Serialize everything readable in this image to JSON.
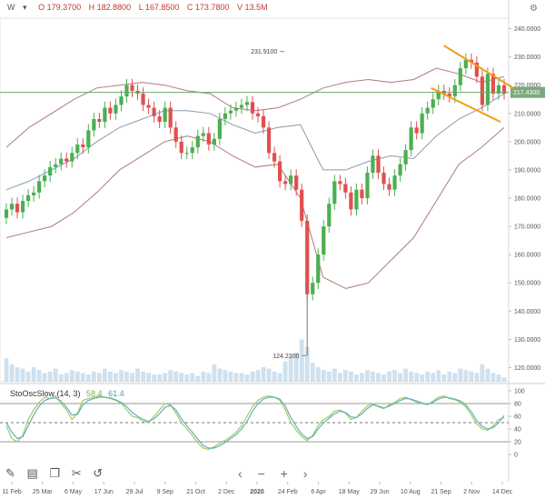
{
  "header": {
    "symbol": "W",
    "open": "O 179.3700",
    "high": "H 182.8800",
    "low": "L 167.8500",
    "close": "C 173.7800",
    "volume": "V 13.5M"
  },
  "indicator": {
    "name": "StoOscSlow (14, 3)",
    "k": "58.4",
    "d": "61.4"
  },
  "colors": {
    "up": "#4caf50",
    "down": "#e05050",
    "band": "#b07a7a",
    "sma": "#8a9bb0",
    "trend": "#f39c12",
    "price_line": "#6aaa6a",
    "price_label_bg": "#7aa97a",
    "volume": "#cfe0ee",
    "stoch_k": "#9ccc65",
    "stoch_d": "#6aaeb8"
  },
  "chart_data": [
    {
      "type": "candlestick",
      "title": "W",
      "interval": "weekly",
      "ylim": [
        115,
        245
      ],
      "y_ticks": [
        "120.0000",
        "130.0000",
        "140.0000",
        "150.0000",
        "160.0000",
        "170.0000",
        "180.0000",
        "190.0000",
        "200.0000",
        "210.0000",
        "220.0000",
        "230.0000",
        "240.0000"
      ],
      "x_ticks": [
        "11 Feb",
        "25 Mar",
        "6 May",
        "17 Jun",
        "29 Jul",
        "9 Sep",
        "21 Oct",
        "2 Dec",
        "2020",
        "24 Feb",
        "6 Apr",
        "18 May",
        "29 Jun",
        "10 Aug",
        "21 Sep",
        "2 Nov",
        "14 Dec"
      ],
      "current_price": "217.4300",
      "annotations": [
        {
          "text": "231.9100",
          "value": 231.91,
          "week": 51
        },
        {
          "text": "124.2300",
          "value": 124.23,
          "week": 55
        }
      ],
      "close": [
        176,
        178,
        175,
        179,
        181,
        182,
        186,
        188,
        191,
        192,
        194,
        193,
        196,
        199,
        198,
        204,
        208,
        207,
        212,
        210,
        213,
        216,
        220,
        218,
        217,
        213,
        212,
        209,
        207,
        212,
        205,
        200,
        196,
        196,
        198,
        202,
        203,
        199,
        201,
        208,
        210,
        211,
        212,
        213,
        214,
        210,
        209,
        205,
        196,
        193,
        186,
        185,
        188,
        183,
        172,
        146,
        150,
        160,
        170,
        178,
        186,
        185,
        182,
        176,
        183,
        180,
        189,
        195,
        189,
        185,
        183,
        188,
        192,
        197,
        205,
        203,
        210,
        212,
        215,
        218,
        217,
        216,
        220,
        226,
        229,
        228,
        223,
        213,
        224,
        217,
        220,
        217
      ],
      "upper_band": [
        198,
        205,
        210,
        215,
        219,
        220,
        221,
        220,
        218,
        217,
        212,
        211,
        212,
        215,
        219,
        221,
        222,
        221,
        222,
        226,
        224,
        221,
        223
      ],
      "middle_band": [
        183,
        186,
        190,
        194,
        200,
        205,
        208,
        211,
        211,
        210,
        206,
        203,
        205,
        206,
        190,
        190,
        193,
        195,
        194,
        202,
        208,
        212,
        217
      ],
      "lower_band": [
        166,
        168,
        170,
        175,
        182,
        190,
        195,
        200,
        202,
        200,
        195,
        191,
        192,
        180,
        152,
        148,
        150,
        158,
        166,
        179,
        192,
        198,
        205
      ],
      "volume": [
        1.6,
        1.2,
        1.0,
        0.9,
        0.7,
        1.0,
        0.8,
        0.6,
        0.7,
        0.9,
        0.5,
        0.6,
        0.8,
        0.7,
        0.6,
        0.5,
        0.7,
        0.6,
        0.9,
        0.7,
        0.6,
        0.8,
        0.7,
        0.6,
        0.9,
        0.7,
        0.6,
        0.5,
        0.5,
        0.6,
        0.8,
        0.7,
        0.6,
        0.5,
        0.6,
        0.4,
        0.7,
        0.6,
        1.2,
        0.9,
        0.8,
        0.7,
        0.6,
        0.6,
        0.5,
        0.7,
        0.8,
        1.0,
        0.9,
        0.7,
        0.6,
        1.4,
        1.7,
        2.0,
        2.9,
        2.4,
        1.3,
        1.0,
        0.8,
        0.7,
        0.9,
        0.6,
        0.8,
        0.7,
        0.5,
        0.6,
        0.8,
        0.7,
        0.6,
        0.5,
        0.7,
        0.8,
        0.6,
        0.9,
        0.7,
        0.6,
        0.5,
        0.7,
        0.6,
        0.8,
        0.5,
        0.7,
        0.6,
        0.9,
        0.8,
        0.7,
        0.6,
        1.2,
        0.9,
        0.6,
        0.5,
        0.3
      ],
      "volume_max": 3.0
    },
    {
      "type": "line",
      "title": "StoOscSlow (14, 3)",
      "ylim": [
        0,
        100
      ],
      "y_ticks": [
        "0",
        "20",
        "40",
        "60",
        "80",
        "100"
      ],
      "reference_lines": [
        20,
        50,
        80
      ],
      "series": [
        {
          "name": "58.4",
          "values": [
            45,
            25,
            20,
            30,
            55,
            70,
            82,
            90,
            88,
            92,
            80,
            70,
            55,
            65,
            85,
            88,
            90,
            92,
            90,
            88,
            85,
            80,
            70,
            60,
            58,
            52,
            50,
            60,
            70,
            80,
            78,
            65,
            50,
            40,
            30,
            18,
            10,
            8,
            12,
            18,
            22,
            28,
            35,
            45,
            60,
            75,
            85,
            90,
            92,
            90,
            85,
            70,
            50,
            38,
            28,
            22,
            30,
            45,
            55,
            60,
            68,
            70,
            65,
            55,
            58,
            68,
            76,
            80,
            75,
            72,
            78,
            82,
            88,
            90,
            86,
            82,
            80,
            78,
            84,
            90,
            92,
            88,
            86,
            82,
            75,
            62,
            48,
            40,
            38,
            45,
            55,
            58
          ]
        },
        {
          "name": "61.4",
          "values": [
            50,
            35,
            25,
            28,
            45,
            62,
            76,
            85,
            88,
            89,
            84,
            74,
            62,
            63,
            78,
            85,
            88,
            90,
            90,
            89,
            86,
            82,
            75,
            66,
            60,
            55,
            52,
            56,
            64,
            74,
            77,
            70,
            56,
            45,
            35,
            24,
            14,
            10,
            10,
            14,
            19,
            25,
            31,
            40,
            52,
            68,
            80,
            87,
            90,
            90,
            87,
            76,
            58,
            44,
            32,
            25,
            28,
            40,
            50,
            57,
            64,
            68,
            66,
            59,
            58,
            64,
            72,
            78,
            76,
            73,
            76,
            80,
            85,
            88,
            87,
            84,
            81,
            79,
            82,
            87,
            90,
            89,
            87,
            84,
            78,
            67,
            53,
            44,
            40,
            42,
            50,
            61
          ]
        }
      ]
    }
  ],
  "toolbar": {
    "nav_prev": "‹",
    "nav_minus": "−",
    "nav_plus": "+",
    "nav_next": "›"
  }
}
